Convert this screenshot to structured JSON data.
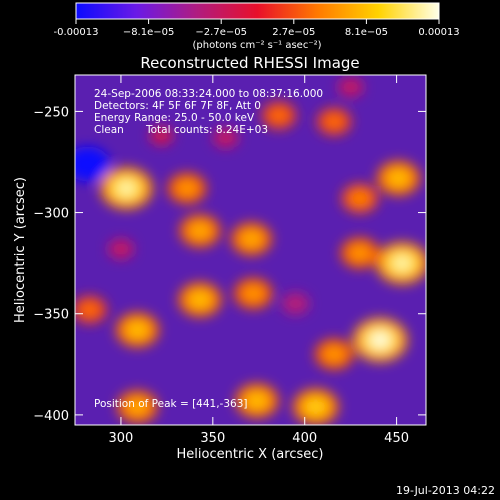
{
  "chart_data": {
    "type": "heatmap",
    "title": "Reconstructed RHESSI Image",
    "xlabel": "Heliocentric X (arcsec)",
    "ylabel": "Heliocentric Y (arcsec)",
    "xlim": [
      275,
      466
    ],
    "ylim": [
      -405,
      -232
    ],
    "x_ticks": [
      300,
      350,
      400,
      450
    ],
    "y_ticks": [
      -400,
      -350,
      -300,
      -250
    ],
    "colorbar": {
      "ticks": [
        "-0.00013",
        "−8.1e−05",
        "−2.7e−05",
        "2.7e−05",
        "8.1e−05",
        "0.00013"
      ],
      "unit": "(photons cm⁻² s⁻¹ asec⁻²)",
      "range": [
        -0.00013,
        0.00013
      ],
      "colors": [
        "#0b0bff",
        "#6a1ae6",
        "#b01c80",
        "#e8102a",
        "#ff7a00",
        "#ffd200",
        "#ffffe8"
      ]
    },
    "info_lines": [
      "24-Sep-2006 08:33:24.000 to 08:37:16.000",
      "Detectors: 4F 5F 6F 7F 8F, Att 0",
      "Energy Range: 25.0 - 50.0 keV"
    ],
    "clean_label": "Clean",
    "total_counts": "Total counts: 8.24E+03",
    "peak_label": "Position of Peak = [441,-363]",
    "peak_position": [
      441,
      -363
    ],
    "sources": [
      {
        "x": 303,
        "y": -288,
        "value": 0.00012
      },
      {
        "x": 336,
        "y": -288,
        "value": 6e-05
      },
      {
        "x": 343,
        "y": -309,
        "value": 7e-05
      },
      {
        "x": 371,
        "y": -313,
        "value": 7e-05
      },
      {
        "x": 386,
        "y": -252,
        "value": 4e-05
      },
      {
        "x": 343,
        "y": -343,
        "value": 8e-05
      },
      {
        "x": 372,
        "y": -340,
        "value": 6e-05
      },
      {
        "x": 309,
        "y": -358,
        "value": 8e-05
      },
      {
        "x": 451,
        "y": -283,
        "value": 8e-05
      },
      {
        "x": 430,
        "y": -293,
        "value": 5e-05
      },
      {
        "x": 453,
        "y": -325,
        "value": 0.00012
      },
      {
        "x": 430,
        "y": -320,
        "value": 6e-05
      },
      {
        "x": 441,
        "y": -363,
        "value": 0.00013
      },
      {
        "x": 416,
        "y": -370,
        "value": 6e-05
      },
      {
        "x": 406,
        "y": -396,
        "value": 9e-05
      },
      {
        "x": 374,
        "y": -393,
        "value": 8e-05
      },
      {
        "x": 309,
        "y": -396,
        "value": 7e-05
      },
      {
        "x": 283,
        "y": -348,
        "value": 4e-05
      },
      {
        "x": 416,
        "y": -255,
        "value": 4e-05
      },
      {
        "x": 322,
        "y": -262,
        "value": -2e-05
      },
      {
        "x": 282,
        "y": -276,
        "value": -0.00013
      },
      {
        "x": 395,
        "y": -345,
        "value": -4e-05
      },
      {
        "x": 357,
        "y": -263,
        "value": -3e-05
      },
      {
        "x": 300,
        "y": -318,
        "value": -3e-05
      },
      {
        "x": 425,
        "y": -238,
        "value": -3e-05
      }
    ]
  },
  "footer": {
    "date": "19-Jul-2013 04:22"
  }
}
